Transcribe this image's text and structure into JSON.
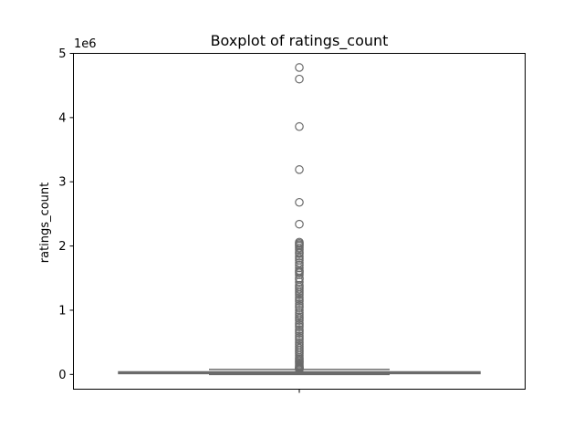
{
  "chart_data": {
    "type": "box",
    "title": "Boxplot of ratings_count",
    "xlabel": "",
    "ylabel": "ratings_count",
    "y_offset_label": "1e6",
    "ylim": [
      -230000,
      5000000
    ],
    "yticks": [
      0,
      1,
      2,
      3,
      4,
      5
    ],
    "ytick_scale": 1000000,
    "box": {
      "q1": 13000,
      "median": 24000,
      "q3": 40000,
      "whisker_low": 0,
      "whisker_high": 78000
    },
    "outliers": [
      4780000,
      4600000,
      3860000,
      3190000,
      2680000,
      2340000,
      2060000,
      2040000,
      2020000,
      2000000,
      1970000,
      1940000,
      1900000,
      1880000,
      1840000,
      1810000,
      1780000,
      1740000,
      1700000,
      1660000,
      1620000,
      1600000,
      1580000,
      1550000,
      1500000,
      1480000,
      1440000,
      1390000,
      1360000,
      1330000,
      1300000,
      1270000,
      1240000,
      1200000,
      1170000,
      1140000,
      1100000,
      1070000,
      1040000,
      1000000,
      960000,
      930000,
      900000,
      870000,
      840000,
      800000,
      770000,
      740000,
      700000,
      670000,
      640000,
      600000,
      570000,
      540000,
      500000,
      470000,
      440000,
      410000,
      380000,
      350000,
      320000,
      290000,
      260000,
      240000,
      220000,
      200000,
      180000,
      160000,
      140000,
      120000,
      110000,
      100000,
      90000,
      85000,
      80000
    ],
    "colors": {
      "box_fill": "#9a9a9a",
      "line": "#6b6b6b",
      "outlier_edge": "#6b6b6b"
    },
    "grid": false
  }
}
